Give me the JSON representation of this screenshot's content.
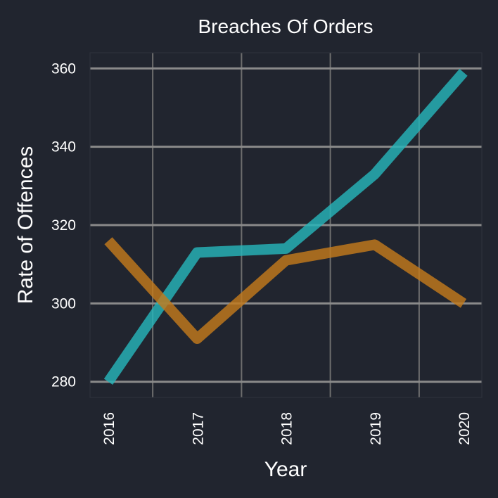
{
  "chart_data": {
    "type": "line",
    "title": "Breaches Of Orders",
    "xlabel": "Year",
    "ylabel": "Rate of Offences",
    "x": [
      2016,
      2017,
      2018,
      2019,
      2020
    ],
    "x_tick_labels": [
      "2016",
      "2017",
      "2018",
      "2019",
      "2020"
    ],
    "y_ticks": [
      280,
      300,
      320,
      340,
      360
    ],
    "y_tick_labels": [
      "280",
      "300",
      "320",
      "340",
      "360"
    ],
    "xlim": [
      2016,
      2020
    ],
    "ylim": [
      276,
      364
    ],
    "grid": true,
    "series": [
      {
        "values": [
          280,
          313,
          314,
          333,
          359
        ],
        "color": "#26b4b9"
      },
      {
        "values": [
          316,
          291,
          311,
          315,
          300
        ],
        "color": "#c27a1c"
      }
    ]
  }
}
